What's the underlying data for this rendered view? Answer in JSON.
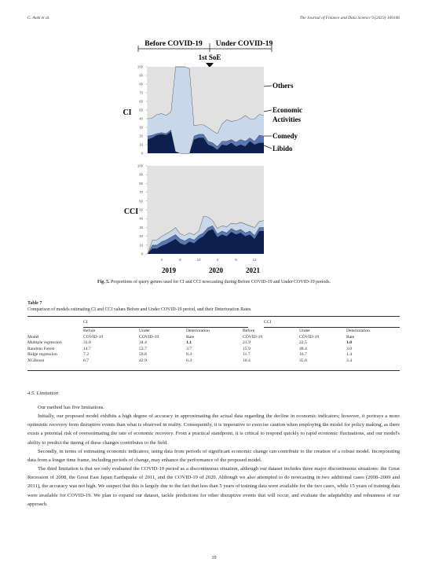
{
  "header": {
    "left": "G. Aoki et al.",
    "right": "The Journal of Finance and Data Science 9 (2023) 100106"
  },
  "figure": {
    "period_before": "Before COVID-19",
    "period_under": "Under COVID-19",
    "soe_label": "1st SoE",
    "panel_ci": "CI",
    "panel_cci": "CCI",
    "legend": [
      "Others",
      "Economic",
      "Activities",
      "Comedy",
      "Libido"
    ],
    "x_ticks": [
      "4",
      "8",
      "12",
      "4",
      "8",
      "12"
    ],
    "years": [
      "2019",
      "2020",
      "2021"
    ],
    "caption_label": "Fig. 5.",
    "caption_text": "Proportions of query genres used for CI and CCI nowcasting during Before COVID-19 and Under COVID-19 periods."
  },
  "chart_data": [
    {
      "type": "area",
      "panel": "CI",
      "ylim": [
        0,
        100
      ],
      "yticks": [
        0,
        10,
        20,
        30,
        40,
        50,
        60,
        70,
        80,
        90,
        100
      ],
      "x": [
        "2019-01",
        "2019-02",
        "2019-03",
        "2019-04",
        "2019-05",
        "2019-06",
        "2019-07",
        "2019-08",
        "2019-09",
        "2019-10",
        "2019-11",
        "2019-12",
        "2020-01",
        "2020-02",
        "2020-03",
        "2020-04",
        "2020-05",
        "2020-06",
        "2020-07",
        "2020-08",
        "2020-09",
        "2020-10",
        "2020-11",
        "2020-12",
        "2021-01",
        "2021-02"
      ],
      "series": [
        {
          "name": "Libido",
          "values": [
            16,
            18,
            21,
            22,
            21,
            25,
            2,
            0,
            0,
            0,
            16,
            18,
            18,
            10,
            8,
            4,
            10,
            9,
            12,
            8,
            10,
            8,
            14,
            10,
            12,
            12
          ]
        },
        {
          "name": "Comedy",
          "values": [
            4,
            3,
            2,
            2,
            2,
            2,
            0,
            0,
            0,
            0,
            4,
            4,
            4,
            4,
            4,
            4,
            4,
            5,
            4,
            5,
            6,
            6,
            4,
            4,
            9,
            8
          ]
        },
        {
          "name": "Economic Activities",
          "values": [
            20,
            20,
            22,
            22,
            21,
            21,
            98,
            100,
            100,
            98,
            12,
            11,
            11,
            16,
            14,
            15,
            20,
            25,
            21,
            25,
            24,
            30,
            22,
            26,
            24,
            24
          ]
        },
        {
          "name": "Others",
          "values": [
            60,
            59,
            55,
            54,
            56,
            52,
            0,
            0,
            0,
            2,
            68,
            67,
            67,
            70,
            74,
            77,
            66,
            61,
            63,
            62,
            60,
            56,
            60,
            60,
            55,
            56
          ]
        }
      ]
    },
    {
      "type": "area",
      "panel": "CCI",
      "ylim": [
        0,
        100
      ],
      "yticks": [
        0,
        10,
        20,
        30,
        40,
        50,
        60,
        70,
        80,
        90,
        100
      ],
      "x": [
        "2019-01",
        "2019-02",
        "2019-03",
        "2019-04",
        "2019-05",
        "2019-06",
        "2019-07",
        "2019-08",
        "2019-09",
        "2019-10",
        "2019-11",
        "2019-12",
        "2020-01",
        "2020-02",
        "2020-03",
        "2020-04",
        "2020-05",
        "2020-06",
        "2020-07",
        "2020-08",
        "2020-09",
        "2020-10",
        "2020-11",
        "2020-12",
        "2021-01",
        "2021-02"
      ],
      "series": [
        {
          "name": "Libido",
          "values": [
            0,
            6,
            6,
            9,
            11,
            14,
            17,
            12,
            10,
            14,
            12,
            17,
            20,
            26,
            28,
            19,
            22,
            20,
            25,
            22,
            24,
            20,
            22,
            17,
            26,
            26
          ]
        },
        {
          "name": "Comedy",
          "values": [
            0,
            4,
            4,
            5,
            5,
            5,
            5,
            5,
            5,
            4,
            4,
            4,
            4,
            4,
            4,
            4,
            4,
            4,
            4,
            4,
            4,
            4,
            4,
            4,
            4,
            4
          ]
        },
        {
          "name": "Economic Activities",
          "values": [
            0,
            6,
            6,
            6,
            7,
            7,
            8,
            6,
            6,
            6,
            6,
            5,
            19,
            12,
            6,
            6,
            6,
            7,
            6,
            8,
            8,
            10,
            6,
            9,
            7,
            8
          ]
        },
        {
          "name": "Others",
          "values": [
            100,
            84,
            84,
            80,
            77,
            74,
            70,
            77,
            79,
            76,
            78,
            74,
            57,
            58,
            62,
            71,
            68,
            69,
            65,
            66,
            64,
            66,
            68,
            70,
            63,
            62
          ]
        }
      ]
    }
  ],
  "colors": {
    "libido": "#0c1f4e",
    "comedy": "#5b78b4",
    "economic": "#c8d7ea",
    "others": "#e1e1e1"
  },
  "table": {
    "title": "Table 7",
    "caption": "Comparison of models estimating CI and CCI values Before and Under COVID-19 period, and their Deterioration Rates.",
    "group_ci": "CI",
    "group_cci": "CCI",
    "head1": [
      "",
      "Before",
      "Under",
      "Deterioration",
      "Before",
      "Under",
      "Deterioration"
    ],
    "head2": [
      "Model",
      "COVID-19",
      "COVID-19",
      "Rate",
      "COVID-19",
      "COVID-19",
      "Rate"
    ],
    "rows": [
      [
        "Multiple regression",
        "31.8",
        "34.4",
        "1.1",
        "21.9",
        "22.5",
        "1.0"
      ],
      [
        "Random Forest",
        "14.7",
        "53.7",
        "3.7",
        "15.9",
        "48.4",
        "3.0"
      ],
      [
        "Ridge regression",
        "7.2",
        "59.8",
        "8.4",
        "11.7",
        "16.7",
        "1.4"
      ],
      [
        "XGBoost",
        "6.7",
        "42.9",
        "6.4",
        "10.4",
        "35.6",
        "3.4"
      ]
    ]
  },
  "section": {
    "title": "4.5.  Limitation",
    "paragraphs": [
      "Our method has five limitations.",
      "Initially, our proposed model exhibits a high degree of accuracy in approximating the actual data regarding the decline in economic indicators; however, it portrays a more optimistic recovery from disruptive events than what is observed in reality. Consequently, it is imperative to exercise caution when employing the model for policy making, as there exists a potential risk of overestimating the rate of economic recovery. From a practical standpoint, it is critical to respond quickly to rapid economic fluctuations, and our model's ability to predict the timing of these changes contributes to the field.",
      "Secondly, in terms of estimating economic indicators, using data from periods of significant economic change can contribute to the creation of a robust model. Incorporating data from a longer time frame, including periods of change, may enhance the performance of the proposed model.",
      "The third limitation is that we only evaluated the COVID-19 period as a discontinuous situation, although our dataset includes three major discontinuous situations: the Great Recession of 2008, the Great East Japan Earthquake of 2011, and the COVID-19 of 2020. Although we also attempted to do nowcasting in two additional cases (2008–2009 and 2011), the accuracy was not high. We suspect that this is largely due to the fact that less than 5 years of training data were available for the two cases, while 15 years of training data were available for COVID-19. We plan to expand our dataset, tackle predictions for other disruptive events that will occur, and evaluate the adaptability and robustness of our approach."
    ]
  },
  "page_number": "10"
}
